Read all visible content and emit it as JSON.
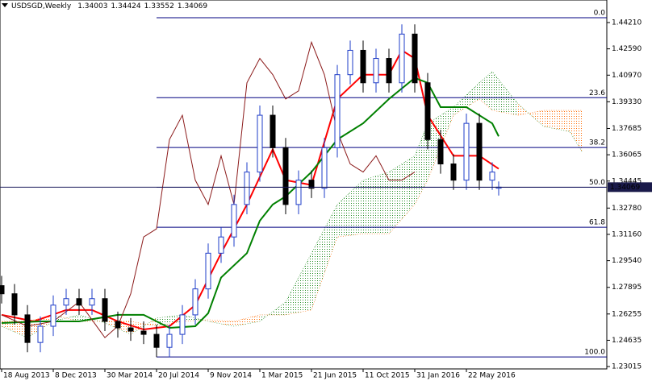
{
  "chart_data": {
    "type": "candlestick",
    "title": "USDSGD,Weekly",
    "header_values": [
      1.34003,
      1.34424,
      1.33552,
      1.34069
    ],
    "x": [
      0,
      4,
      8,
      12,
      16,
      20,
      24,
      28,
      32,
      36,
      40,
      44,
      48,
      52,
      56,
      60,
      64,
      68,
      72,
      76,
      80,
      84,
      88,
      92,
      96,
      100,
      104,
      108,
      112,
      116,
      120,
      124,
      128,
      132,
      136,
      140,
      144,
      148,
      152,
      154
    ],
    "open": [
      1.28,
      1.275,
      1.262,
      1.245,
      1.255,
      1.268,
      1.272,
      1.268,
      1.272,
      1.258,
      1.254,
      1.252,
      1.25,
      1.242,
      1.25,
      1.262,
      1.278,
      1.3,
      1.31,
      1.33,
      1.35,
      1.385,
      1.365,
      1.33,
      1.345,
      1.34,
      1.365,
      1.41,
      1.425,
      1.405,
      1.42,
      1.405,
      1.435,
      1.405,
      1.37,
      1.355,
      1.345,
      1.38,
      1.345,
      1.34003
    ],
    "high": [
      1.286,
      1.281,
      1.268,
      1.261,
      1.274,
      1.278,
      1.278,
      1.278,
      1.278,
      1.264,
      1.26,
      1.258,
      1.256,
      1.256,
      1.268,
      1.284,
      1.306,
      1.316,
      1.336,
      1.356,
      1.391,
      1.391,
      1.371,
      1.351,
      1.351,
      1.371,
      1.416,
      1.431,
      1.431,
      1.426,
      1.426,
      1.441,
      1.441,
      1.411,
      1.376,
      1.361,
      1.386,
      1.386,
      1.356,
      1.34424
    ],
    "low": [
      1.269,
      1.256,
      1.239,
      1.239,
      1.249,
      1.262,
      1.262,
      1.262,
      1.252,
      1.248,
      1.246,
      1.244,
      1.236,
      1.236,
      1.244,
      1.256,
      1.272,
      1.294,
      1.304,
      1.324,
      1.344,
      1.359,
      1.324,
      1.324,
      1.334,
      1.334,
      1.359,
      1.404,
      1.399,
      1.399,
      1.399,
      1.399,
      1.399,
      1.364,
      1.349,
      1.339,
      1.339,
      1.339,
      1.339,
      1.33552
    ],
    "close": [
      1.275,
      1.262,
      1.245,
      1.255,
      1.268,
      1.272,
      1.268,
      1.272,
      1.258,
      1.254,
      1.252,
      1.25,
      1.242,
      1.25,
      1.262,
      1.278,
      1.3,
      1.31,
      1.33,
      1.35,
      1.385,
      1.365,
      1.33,
      1.345,
      1.34,
      1.365,
      1.41,
      1.425,
      1.405,
      1.42,
      1.405,
      1.435,
      1.405,
      1.37,
      1.355,
      1.345,
      1.38,
      1.345,
      1.35,
      1.34069
    ],
    "up_color": "#1e3cc8",
    "down_color": "#000000",
    "indicators": [
      {
        "color": "#ff0000",
        "width": 2,
        "x": [
          0,
          10,
          20,
          28,
          36,
          44,
          52,
          60,
          68,
          76,
          84,
          88,
          96,
          104,
          112,
          120,
          124,
          128,
          132,
          140,
          148,
          154
        ],
        "values": [
          1.262,
          1.258,
          1.265,
          1.265,
          1.258,
          1.253,
          1.255,
          1.268,
          1.3,
          1.33,
          1.364,
          1.345,
          1.342,
          1.395,
          1.41,
          1.41,
          1.425,
          1.42,
          1.385,
          1.36,
          1.36,
          1.352
        ]
      },
      {
        "color": "#008000",
        "width": 2,
        "x": [
          0,
          12,
          24,
          36,
          44,
          52,
          60,
          64,
          68,
          76,
          80,
          84,
          88,
          96,
          104,
          112,
          120,
          128,
          132,
          136,
          144,
          152,
          154
        ],
        "values": [
          1.257,
          1.258,
          1.258,
          1.262,
          1.262,
          1.254,
          1.255,
          1.263,
          1.285,
          1.3,
          1.32,
          1.33,
          1.335,
          1.35,
          1.37,
          1.38,
          1.395,
          1.408,
          1.405,
          1.39,
          1.39,
          1.38,
          1.372
        ]
      },
      {
        "color": "#8b1a1a",
        "width": 1,
        "x": [
          0,
          8,
          16,
          24,
          32,
          36,
          40,
          44,
          48,
          52,
          56,
          60,
          64,
          68,
          72,
          76,
          80,
          84,
          88,
          92,
          96,
          100,
          104,
          108,
          112,
          116,
          120,
          124,
          128
        ],
        "values": [
          1.262,
          1.255,
          1.258,
          1.27,
          1.248,
          1.255,
          1.275,
          1.31,
          1.315,
          1.37,
          1.385,
          1.345,
          1.33,
          1.36,
          1.33,
          1.405,
          1.42,
          1.41,
          1.395,
          1.4,
          1.43,
          1.41,
          1.375,
          1.355,
          1.35,
          1.36,
          1.345,
          1.345,
          1.35
        ]
      }
    ],
    "cloud": {
      "x": [
        0,
        8,
        16,
        24,
        32,
        40,
        48,
        56,
        64,
        72,
        80,
        88,
        96,
        104,
        112,
        120,
        128,
        132,
        140,
        148,
        152,
        160,
        168,
        176,
        180
      ],
      "span_a": [
        1.255,
        1.248,
        1.258,
        1.262,
        1.257,
        1.25,
        1.26,
        1.262,
        1.258,
        1.255,
        1.258,
        1.27,
        1.3,
        1.33,
        1.345,
        1.35,
        1.36,
        1.38,
        1.39,
        1.405,
        1.412,
        1.392,
        1.378,
        1.375,
        1.362
      ],
      "span_b": [
        1.258,
        1.258,
        1.262,
        1.258,
        1.258,
        1.258,
        1.255,
        1.258,
        1.259,
        1.258,
        1.262,
        1.262,
        1.265,
        1.31,
        1.312,
        1.312,
        1.33,
        1.345,
        1.385,
        1.395,
        1.388,
        1.385,
        1.388,
        1.388,
        1.388
      ],
      "up_color": "#228b22",
      "down_color": "#ff6a00"
    },
    "fib": {
      "color": "#000080",
      "x_start": 48,
      "levels": [
        {
          "value": 1.4451,
          "label": "0.0"
        },
        {
          "value": 1.3958,
          "label": "23.6"
        },
        {
          "value": 1.3651,
          "label": "38.2"
        },
        {
          "value": 1.3406,
          "label": "50.0"
        },
        {
          "value": 1.316,
          "label": "61.8"
        },
        {
          "value": 1.2361,
          "label": "100.0"
        }
      ]
    },
    "last_price": 1.34069,
    "xlim": [
      -0.5,
      187.5
    ],
    "ylim": [
      1.2287,
      1.456
    ],
    "yticks": [
      {
        "value": 1.4421,
        "label": "1.44210"
      },
      {
        "value": 1.4259,
        "label": "1.42590"
      },
      {
        "value": 1.4097,
        "label": "1.40970"
      },
      {
        "value": 1.3933,
        "label": "1.39330"
      },
      1.37685,
      1.36065,
      1.34445,
      {
        "value": 1.3278,
        "label": "1.32780"
      },
      {
        "value": 1.3116,
        "label": "1.31160"
      },
      {
        "value": 1.2954,
        "label": "1.29540"
      },
      1.27895,
      1.26255,
      1.24635,
      1.23015
    ],
    "xticks": [
      {
        "value": 0,
        "label": "18 Aug 2013"
      },
      {
        "value": 16,
        "label": "8 Dec 2013"
      },
      {
        "value": 32,
        "label": "30 Mar 2014"
      },
      {
        "value": 48,
        "label": "20 Jul 2014"
      },
      {
        "value": 64,
        "label": "9 Nov 2014"
      },
      {
        "value": 80,
        "label": "1 Mar 2015"
      },
      {
        "value": 96,
        "label": "21 Jun 2015"
      },
      {
        "value": 112,
        "label": "11 Oct 2015"
      },
      {
        "value": 128,
        "label": "31 Jan 2016"
      },
      {
        "value": 144,
        "label": "22 May 2016"
      }
    ]
  }
}
